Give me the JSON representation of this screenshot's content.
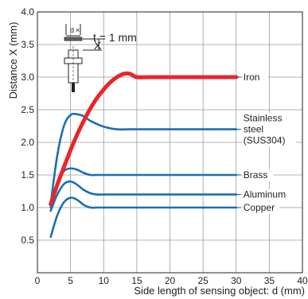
{
  "chart_data": {
    "type": "line",
    "xlabel": "Side length of sensing object: d (mm)",
    "ylabel": "Distance X (mm)",
    "xlim": [
      0,
      40
    ],
    "ylim": [
      0,
      4.0
    ],
    "x_ticks": [
      "0",
      "5",
      "10",
      "15",
      "20",
      "25",
      "30",
      "35",
      "40"
    ],
    "y_ticks": [
      "0.5",
      "1.0",
      "1.5",
      "2.0",
      "2.5",
      "3.0",
      "3.5",
      "4.0"
    ],
    "grid": true,
    "annotation": "t = 1 mm",
    "series": [
      {
        "name": "Iron",
        "color": "#e8262b",
        "x": [
          2,
          3,
          4,
          5,
          6,
          7,
          8,
          9,
          10,
          11,
          12,
          13,
          14,
          15,
          17,
          20,
          25,
          30
        ],
        "y": [
          1.05,
          1.35,
          1.62,
          1.88,
          2.12,
          2.33,
          2.52,
          2.68,
          2.81,
          2.92,
          3.0,
          3.05,
          3.05,
          3.0,
          3.0,
          3.0,
          3.0,
          3.0
        ]
      },
      {
        "name": "Stainless steel (SUS304)",
        "color": "#1a6fb3",
        "x": [
          2,
          3,
          4,
          5,
          6,
          7,
          8,
          10,
          12,
          14,
          17,
          20,
          25,
          30
        ],
        "y": [
          1.05,
          1.8,
          2.25,
          2.42,
          2.43,
          2.4,
          2.33,
          2.24,
          2.2,
          2.2,
          2.2,
          2.2,
          2.2,
          2.2
        ]
      },
      {
        "name": "Brass",
        "color": "#1a6fb3",
        "x": [
          2,
          3,
          4,
          5,
          6,
          7,
          8,
          9,
          10,
          12,
          15,
          20,
          25,
          30
        ],
        "y": [
          1.0,
          1.38,
          1.56,
          1.6,
          1.58,
          1.53,
          1.5,
          1.5,
          1.5,
          1.5,
          1.5,
          1.5,
          1.5,
          1.5
        ]
      },
      {
        "name": "Aluminum",
        "color": "#1a6fb3",
        "x": [
          2,
          3,
          4,
          5,
          6,
          7,
          8,
          9,
          10,
          12,
          15,
          20,
          25,
          30
        ],
        "y": [
          0.95,
          1.2,
          1.36,
          1.4,
          1.35,
          1.27,
          1.22,
          1.2,
          1.2,
          1.2,
          1.2,
          1.2,
          1.2,
          1.2
        ]
      },
      {
        "name": "Copper",
        "color": "#1a6fb3",
        "x": [
          2,
          3,
          4,
          5,
          6,
          7,
          8,
          9,
          10,
          12,
          15,
          20,
          25,
          30
        ],
        "y": [
          0.55,
          0.88,
          1.08,
          1.15,
          1.12,
          1.04,
          1.0,
          1.0,
          1.0,
          1.0,
          1.0,
          1.0,
          1.0,
          1.0
        ]
      }
    ],
    "series_labels": [
      {
        "lines": [
          "Iron"
        ],
        "y": 3.0
      },
      {
        "lines": [
          "Stainless",
          "steel",
          "(SUS304)"
        ],
        "y": 2.2
      },
      {
        "lines": [
          "Brass"
        ],
        "y": 1.5
      },
      {
        "lines": [
          "Aluminum"
        ],
        "y": 1.2
      },
      {
        "lines": [
          "Copper"
        ],
        "y": 1.0
      }
    ]
  },
  "diagram": {
    "d_label": "d",
    "x_label": "X",
    "cross_mark": "×"
  }
}
